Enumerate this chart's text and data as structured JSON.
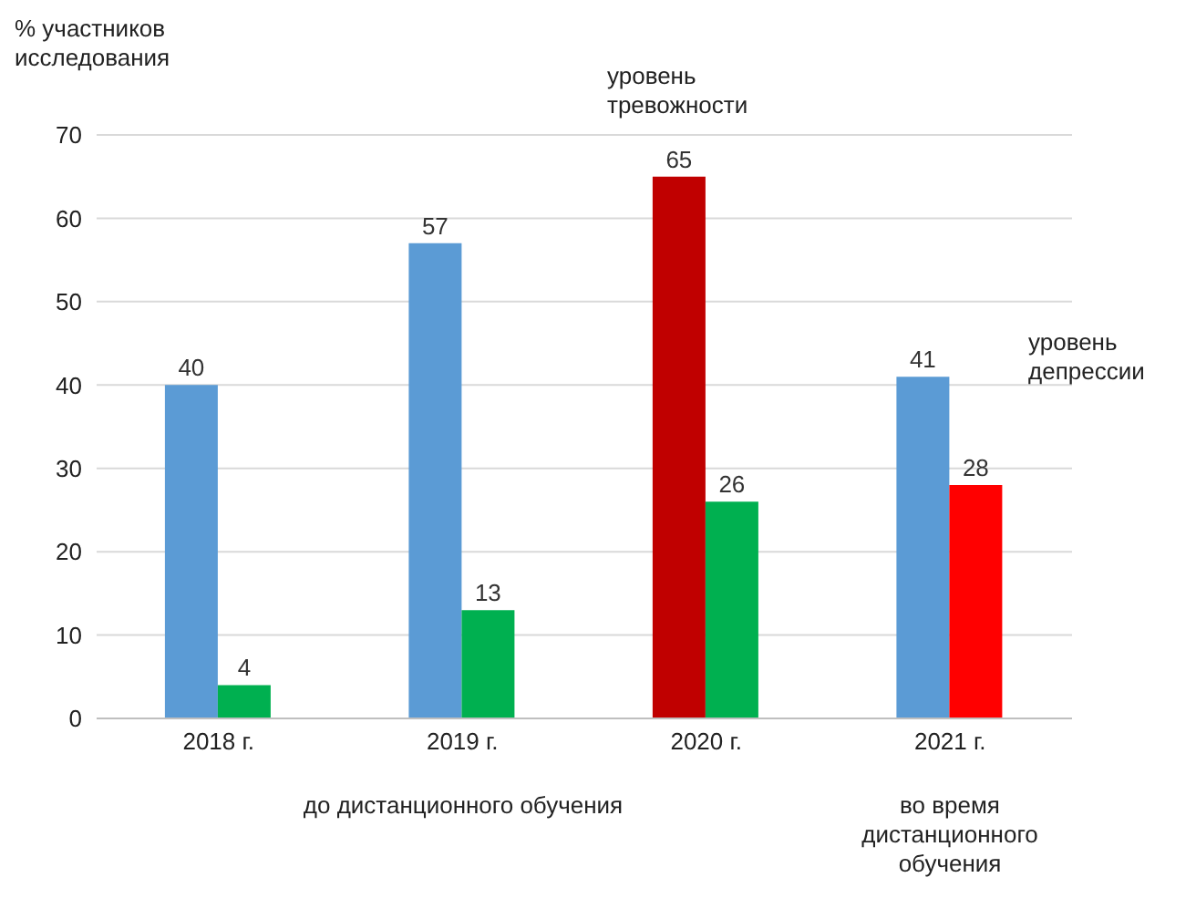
{
  "chart_data": {
    "type": "bar",
    "ylabel": "% участников исследования",
    "categories": [
      "2018 г.",
      "2019 г.",
      "2020 г.",
      "2021 г."
    ],
    "series": [
      {
        "colors": [
          "#5b9bd5",
          "#5b9bd5",
          "#c00000",
          "#5b9bd5"
        ],
        "values": [
          40,
          57,
          65,
          41
        ]
      },
      {
        "colors": [
          "#00b050",
          "#00b050",
          "#00b050",
          "#ff0000"
        ],
        "values": [
          4,
          13,
          26,
          28
        ]
      }
    ],
    "ylim": [
      0,
      70
    ],
    "yticks": [
      0,
      10,
      20,
      30,
      40,
      50,
      60,
      70
    ],
    "grid": "y",
    "data_labels": true,
    "legend": false,
    "annotations": [
      "уровень тревожности",
      "уровень депрессии",
      "до дистанционного обучения",
      "во время дистанционного обучения"
    ]
  }
}
